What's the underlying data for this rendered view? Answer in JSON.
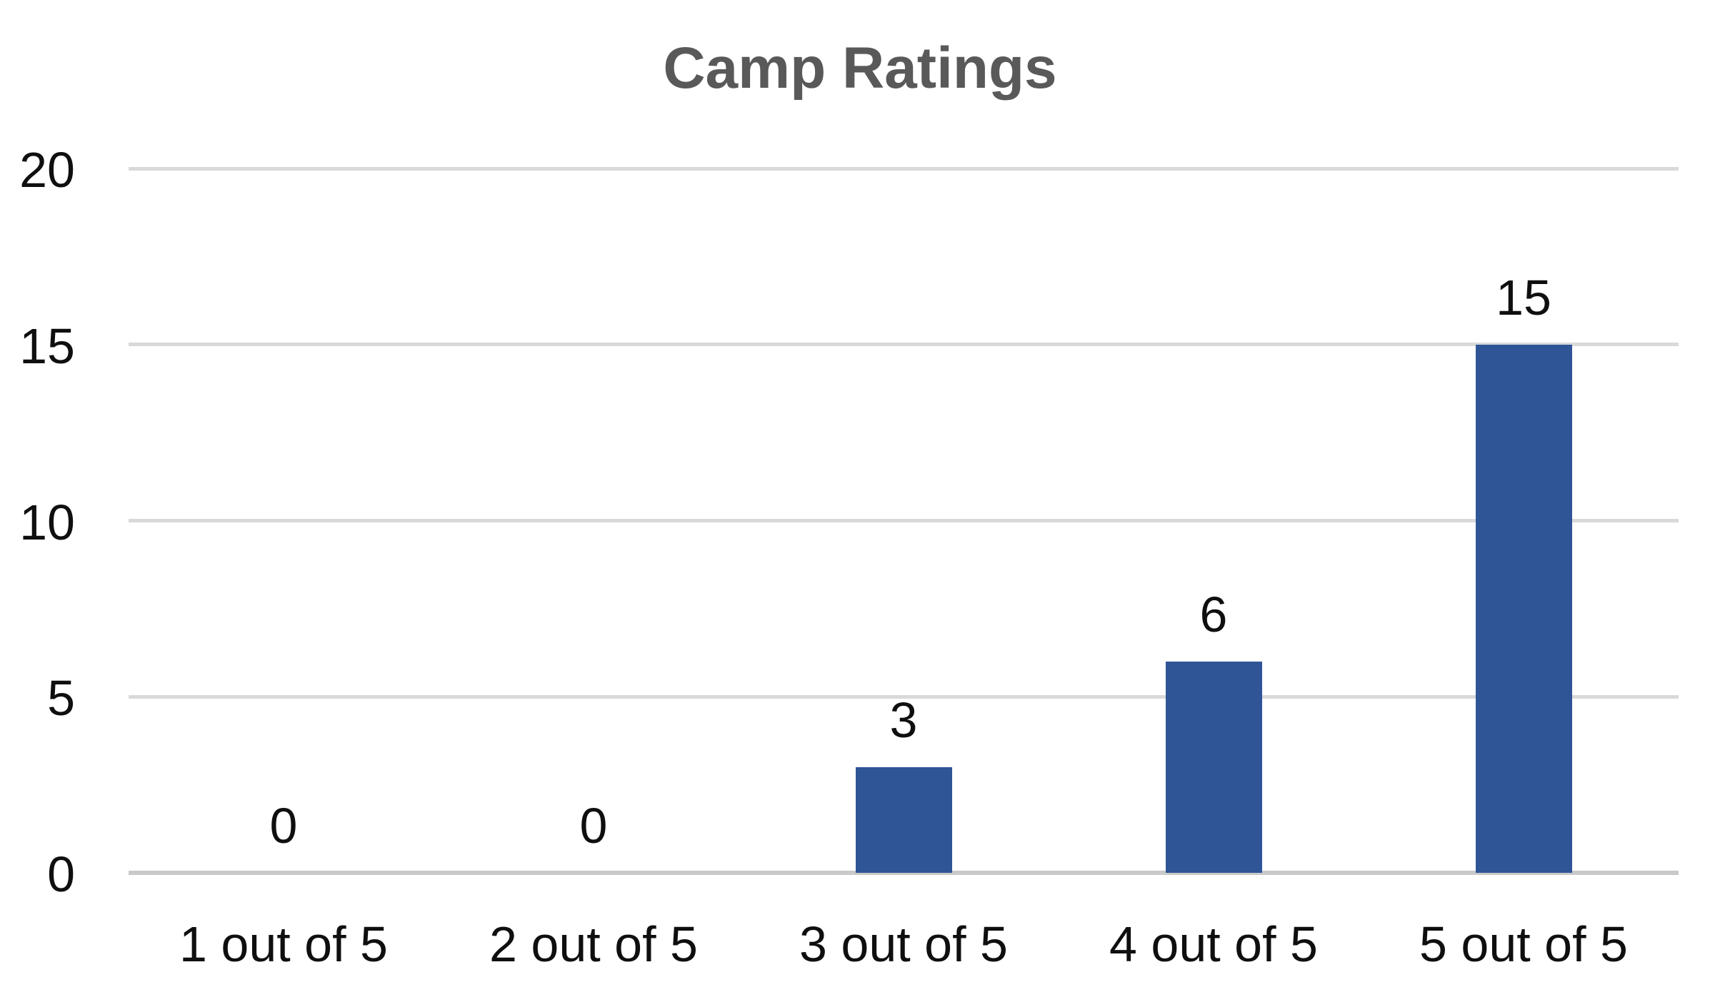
{
  "chart_data": {
    "type": "bar",
    "title": "Camp Ratings",
    "categories": [
      "1 out of 5",
      "2 out of 5",
      "3 out of 5",
      "4 out of 5",
      "5 out of 5"
    ],
    "values": [
      0,
      0,
      3,
      6,
      15
    ],
    "data_labels": [
      "0",
      "0",
      "3",
      "6",
      "15"
    ],
    "xlabel": "",
    "ylabel": "",
    "ylim": [
      0,
      20
    ],
    "yticks": [
      0,
      5,
      10,
      15,
      20
    ],
    "grid": "horizontal",
    "legend": "none",
    "colors": {
      "bar": "#2F5596",
      "title": "#595959",
      "labels": "#0f0f0f",
      "gridline": "#D9D9D9",
      "axis_line": "#C9C9C9",
      "background": "#FFFFFF"
    }
  }
}
